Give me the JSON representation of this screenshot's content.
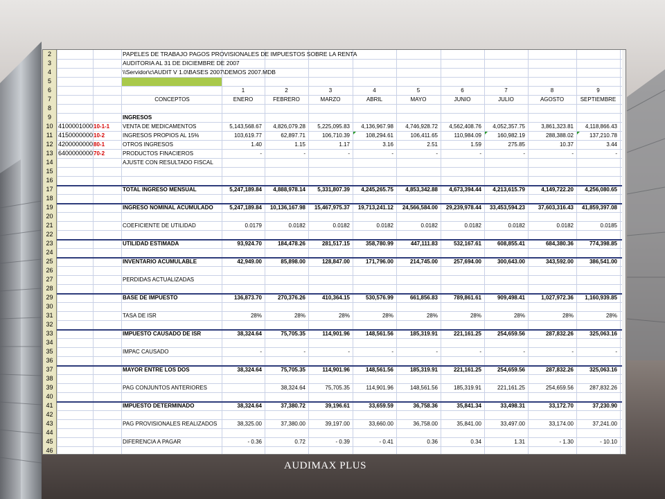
{
  "footer": {
    "brand": "AUDIMAX PLUS"
  },
  "colors": {
    "accent_row_fill": "#a9c94a",
    "code_text": "#d40000",
    "grid": "#c9d1e6",
    "header_rule": "#2d3b7a"
  },
  "sheet": {
    "title_lines": [
      "PAPELES DE TRABAJO PAGOS PROVISIONALES DE IMPUESTOS SOBRE LA RENTA",
      "AUDITORIA AL 31 DE DICIEMBRE DE 2007",
      "\\\\Servidor\\c\\AUDIT V 1.0\\BASES 2007\\DEMOS 2007.MDB"
    ],
    "month_numbers": [
      "1",
      "2",
      "3",
      "4",
      "5",
      "6",
      "7",
      "8",
      "9"
    ],
    "header_concept": "CONCEPTOS",
    "months": [
      "ENERO",
      "FEBRERO",
      "MARZO",
      "ABRIL",
      "MAYO",
      "JUNIO",
      "JULIO",
      "AGOSTO",
      "SEPTIEMBRE"
    ],
    "row_numbers": [
      "2",
      "3",
      "4",
      "5",
      "6",
      "7",
      "8",
      "9",
      "10",
      "11",
      "12",
      "13",
      "14",
      "15",
      "16",
      "17",
      "18",
      "19",
      "20",
      "21",
      "22",
      "23",
      "24",
      "25",
      "26",
      "27",
      "28",
      "29",
      "30",
      "31",
      "32",
      "33",
      "34",
      "35",
      "36",
      "37",
      "38",
      "39",
      "40",
      "41",
      "42",
      "43",
      "44",
      "45",
      "46"
    ],
    "ingresos_label": "INGRESOS",
    "data_rows": [
      {
        "rn": "10",
        "acct": "4100001000",
        "code": "10-1-1",
        "concept": "VENTA DE MEDICAMENTOS",
        "bold": false,
        "v": [
          "5,143,568.67",
          "4,826,079.28",
          "5,225,095.83",
          "4,136,967.98",
          "4,746,928.72",
          "4,562,408.76",
          "4,052,357.75",
          "3,861,323.81",
          "4,118,866.43"
        ]
      },
      {
        "rn": "11",
        "acct": "4150000000",
        "code": "10-2",
        "concept": "INGRESOS PROPIOS AL 15%",
        "bold": false,
        "v": [
          "103,619.77",
          "62,897.71",
          "106,710.39",
          "108,294.61",
          "106,411.65",
          "110,984.09",
          "160,982.19",
          "288,388.02",
          "137,210.78"
        ]
      },
      {
        "rn": "12",
        "acct": "4200000000",
        "code": "80-1",
        "concept": "OTROS INGRESOS",
        "bold": false,
        "v": [
          "1.40",
          "1.15",
          "1.17",
          "3.16",
          "2.51",
          "1.59",
          "275.85",
          "10.37",
          "3.44"
        ]
      },
      {
        "rn": "13",
        "acct": "6400000000",
        "code": "70-2",
        "concept": "PRODUCTOS FINACIEROS",
        "bold": false,
        "v": [
          "-",
          "-",
          "-",
          "-",
          "-",
          "-",
          "-",
          "-",
          "-"
        ]
      },
      {
        "rn": "14",
        "acct": "",
        "code": "",
        "concept": "AJUSTE CON RESULTADO FISCAL",
        "bold": false,
        "v": [
          "",
          "",
          "",
          "",
          "",
          "",
          "",
          "",
          ""
        ]
      }
    ],
    "summary_rows": [
      {
        "rn": "17",
        "concept": "TOTAL INGRESO MENSUAL",
        "bold": true,
        "v": [
          "5,247,189.84",
          "4,888,978.14",
          "5,331,807.39",
          "4,245,265.75",
          "4,853,342.88",
          "4,673,394.44",
          "4,213,615.79",
          "4,149,722.20",
          "4,256,080.65"
        ]
      },
      {
        "rn": "19",
        "concept": "INGRESO NOMINAL ACUMULADO",
        "bold": true,
        "v": [
          "5,247,189.84",
          "10,136,167.98",
          "15,467,975.37",
          "19,713,241.12",
          "24,566,584.00",
          "29,239,978.44",
          "33,453,594.23",
          "37,603,316.43",
          "41,859,397.08"
        ]
      },
      {
        "rn": "21",
        "concept": "COEFICIENTE DE UTILIDAD",
        "bold": false,
        "v": [
          "0.0179",
          "0.0182",
          "0.0182",
          "0.0182",
          "0.0182",
          "0.0182",
          "0.0182",
          "0.0182",
          "0.0185"
        ]
      },
      {
        "rn": "23",
        "concept": "UTILIDAD ESTIMADA",
        "bold": true,
        "v": [
          "93,924.70",
          "184,478.26",
          "281,517.15",
          "358,780.99",
          "447,111.83",
          "532,167.61",
          "608,855.41",
          "684,380.36",
          "774,398.85"
        ]
      },
      {
        "rn": "25",
        "concept": "INVENTARIO ACUMULABLE",
        "bold": true,
        "v": [
          "42,949.00",
          "85,898.00",
          "128,847.00",
          "171,796.00",
          "214,745.00",
          "257,694.00",
          "300,643.00",
          "343,592.00",
          "386,541.00"
        ]
      },
      {
        "rn": "27",
        "concept": "PERDIDAS ACTUALIZADAS",
        "bold": false,
        "v": [
          "",
          "",
          "",
          "",
          "",
          "",
          "",
          "",
          ""
        ]
      },
      {
        "rn": "29",
        "concept": "BASE DE IMPUESTO",
        "bold": true,
        "v": [
          "136,873.70",
          "270,376.26",
          "410,364.15",
          "530,576.99",
          "661,856.83",
          "789,861.61",
          "909,498.41",
          "1,027,972.36",
          "1,160,939.85"
        ]
      },
      {
        "rn": "31",
        "concept": "TASA DE ISR",
        "bold": false,
        "v": [
          "28%",
          "28%",
          "28%",
          "28%",
          "28%",
          "28%",
          "28%",
          "28%",
          "28%"
        ]
      },
      {
        "rn": "33",
        "concept": "IMPUESTO CAUSADO DE ISR",
        "bold": true,
        "v": [
          "38,324.64",
          "75,705.35",
          "114,901.96",
          "148,561.56",
          "185,319.91",
          "221,161.25",
          "254,659.56",
          "287,832.26",
          "325,063.16"
        ]
      },
      {
        "rn": "35",
        "concept": "IMPAC CAUSADO",
        "bold": false,
        "v": [
          "-",
          "-",
          "-",
          "-",
          "-",
          "-",
          "-",
          "-",
          "-"
        ]
      },
      {
        "rn": "37",
        "concept": "MAYOR ENTRE LOS DOS",
        "bold": true,
        "v": [
          "38,324.64",
          "75,705.35",
          "114,901.96",
          "148,561.56",
          "185,319.91",
          "221,161.25",
          "254,659.56",
          "287,832.26",
          "325,063.16"
        ]
      },
      {
        "rn": "39",
        "concept": "PAG CONJUNTOS ANTERIORES",
        "bold": false,
        "v": [
          "",
          "38,324.64",
          "75,705.35",
          "114,901.96",
          "148,561.56",
          "185,319.91",
          "221,161.25",
          "254,659.56",
          "287,832.26"
        ]
      },
      {
        "rn": "41",
        "concept": "IMPUESTO DETERMINADO",
        "bold": true,
        "v": [
          "38,324.64",
          "37,380.72",
          "39,196.61",
          "33,659.59",
          "36,758.36",
          "35,841.34",
          "33,498.31",
          "33,172.70",
          "37,230.90"
        ]
      },
      {
        "rn": "43",
        "concept": "PAG PROVISIONALES REALIZADOS",
        "bold": false,
        "v": [
          "38,325.00",
          "37,380.00",
          "39,197.00",
          "33,660.00",
          "36,758.00",
          "35,841.00",
          "33,497.00",
          "33,174.00",
          "37,241.00"
        ]
      },
      {
        "rn": "45",
        "concept": "DIFERENCIA A PAGAR",
        "bold": false,
        "v": [
          "-    0.36",
          "0.72",
          "-    0.39",
          "-    0.41",
          "0.36",
          "0.34",
          "1.31",
          "-    1.30",
          "-    10.10"
        ]
      }
    ]
  }
}
